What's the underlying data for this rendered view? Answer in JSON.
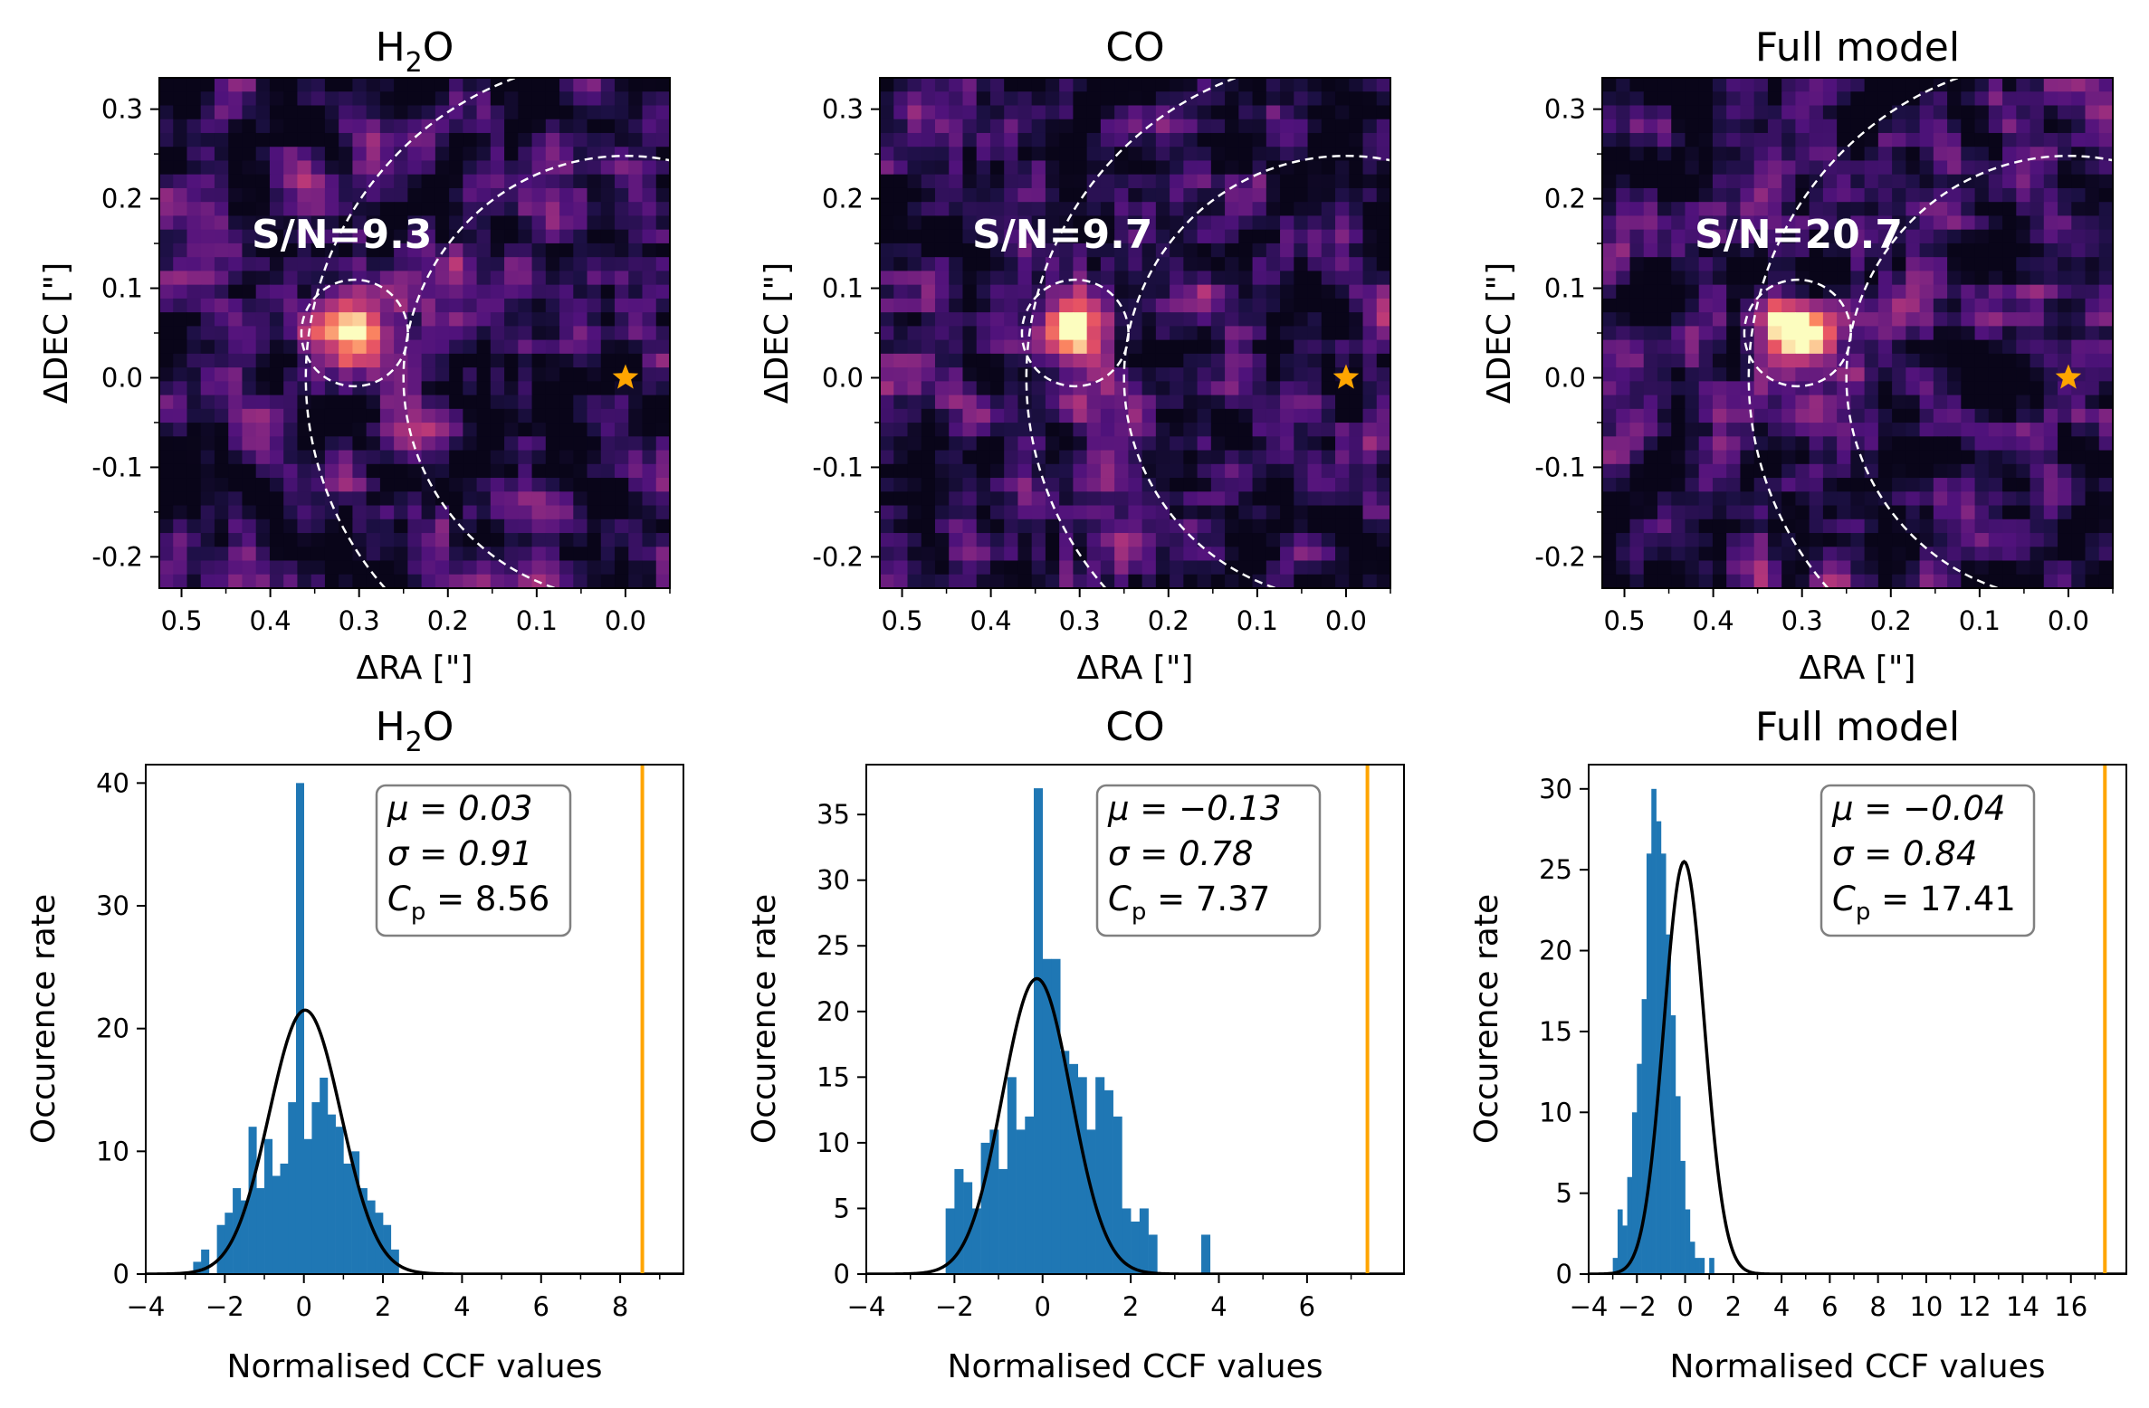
{
  "figure": {
    "maps": [
      {
        "title_main": "H",
        "title_sub": "2",
        "title_end": "O",
        "snr_label": "S/N=9.3",
        "xlabel": "ΔRA [\"]",
        "ylabel": "ΔDEC [\"]",
        "xticks": [
          "0.5",
          "0.4",
          "0.3",
          "0.2",
          "0.1",
          "0.0"
        ],
        "yticks": [
          "0.3",
          "0.2",
          "0.1",
          "0.0",
          "-0.1",
          "-0.2"
        ],
        "seed": 11
      },
      {
        "title_main": "CO",
        "title_sub": "",
        "title_end": "",
        "snr_label": "S/N=9.7",
        "xlabel": "ΔRA [\"]",
        "ylabel": "ΔDEC [\"]",
        "xticks": [
          "0.5",
          "0.4",
          "0.3",
          "0.2",
          "0.1",
          "0.0"
        ],
        "yticks": [
          "0.3",
          "0.2",
          "0.1",
          "0.0",
          "-0.1",
          "-0.2"
        ],
        "seed": 23
      },
      {
        "title_main": "Full model",
        "title_sub": "",
        "title_end": "",
        "snr_label": "S/N=20.7",
        "xlabel": "ΔRA [\"]",
        "ylabel": "ΔDEC [\"]",
        "xticks": [
          "0.5",
          "0.4",
          "0.3",
          "0.2",
          "0.1",
          "0.0"
        ],
        "yticks": [
          "0.3",
          "0.2",
          "0.1",
          "0.0",
          "-0.1",
          "-0.2"
        ],
        "seed": 37
      }
    ],
    "hists": [
      {
        "title_main": "H",
        "title_sub": "2",
        "title_end": "O",
        "xlabel": "Normalised CCF values",
        "ylabel": "Occurence rate",
        "stat_mu": "μ = 0.03",
        "stat_sigma": "σ = 0.91",
        "stat_cp": "C",
        "stat_cp_sub": "p",
        "stat_cp_val": " = 8.56",
        "xticks": [
          "−4",
          "−2",
          "0",
          "2",
          "4",
          "6",
          "8"
        ],
        "yticks": [
          "0",
          "10",
          "20",
          "30",
          "40"
        ]
      },
      {
        "title_main": "CO",
        "title_sub": "",
        "title_end": "",
        "xlabel": "Normalised CCF values",
        "ylabel": "Occurence rate",
        "stat_mu": "μ = −0.13",
        "stat_sigma": "σ = 0.78",
        "stat_cp": "C",
        "stat_cp_sub": "p",
        "stat_cp_val": " = 7.37",
        "xticks": [
          "−4",
          "−2",
          "0",
          "2",
          "4",
          "6"
        ],
        "yticks": [
          "0",
          "5",
          "10",
          "15",
          "20",
          "25",
          "30",
          "35"
        ]
      },
      {
        "title_main": "Full model",
        "title_sub": "",
        "title_end": "",
        "xlabel": "Normalised CCF values",
        "ylabel": "Occurence rate",
        "stat_mu": "μ = −0.04",
        "stat_sigma": "σ = 0.84",
        "stat_cp": "C",
        "stat_cp_sub": "p",
        "stat_cp_val": " = 17.41",
        "xticks": [
          "−4",
          "−2",
          "0",
          "2",
          "4",
          "6",
          "8",
          "10",
          "12",
          "14",
          "16"
        ],
        "yticks": [
          "0",
          "5",
          "10",
          "15",
          "20",
          "25",
          "30"
        ]
      }
    ]
  },
  "chart_data": [
    {
      "type": "heatmap",
      "title": "H2O",
      "annotation": "S/N=9.3",
      "xlabel": "ΔRA [\"]",
      "ylabel": "ΔDEC [\"]",
      "xlim": [
        0.525,
        -0.05
      ],
      "ylim": [
        -0.235,
        0.335
      ],
      "peak": {
        "x": 0.305,
        "y": 0.05,
        "strength": 0.9
      },
      "star": {
        "x": 0.0,
        "y": 0.0,
        "color": "#ffa500"
      },
      "circles": [
        {
          "cx": 0.305,
          "cy": 0.05,
          "r": 0.06
        },
        {
          "cx": 0.0,
          "cy": 0.0,
          "r": 0.36
        },
        {
          "cx": 0.0,
          "cy": 0.0,
          "r": 0.25
        }
      ]
    },
    {
      "type": "heatmap",
      "title": "CO",
      "annotation": "S/N=9.7",
      "xlabel": "ΔRA [\"]",
      "ylabel": "ΔDEC [\"]",
      "xlim": [
        0.525,
        -0.05
      ],
      "ylim": [
        -0.235,
        0.335
      ],
      "peak": {
        "x": 0.31,
        "y": 0.05,
        "strength": 1.0
      },
      "star": {
        "x": 0.0,
        "y": 0.0,
        "color": "#ffa500"
      },
      "circles": [
        {
          "cx": 0.305,
          "cy": 0.05,
          "r": 0.06
        },
        {
          "cx": 0.0,
          "cy": 0.0,
          "r": 0.36
        },
        {
          "cx": 0.0,
          "cy": 0.0,
          "r": 0.25
        }
      ]
    },
    {
      "type": "heatmap",
      "title": "Full model",
      "annotation": "S/N=20.7",
      "xlabel": "ΔRA [\"]",
      "ylabel": "ΔDEC [\"]",
      "xlim": [
        0.525,
        -0.05
      ],
      "ylim": [
        -0.235,
        0.335
      ],
      "peak": {
        "x": 0.305,
        "y": 0.05,
        "strength": 1.2
      },
      "star": {
        "x": 0.0,
        "y": 0.0,
        "color": "#ffa500"
      },
      "circles": [
        {
          "cx": 0.305,
          "cy": 0.05,
          "r": 0.06
        },
        {
          "cx": 0.0,
          "cy": 0.0,
          "r": 0.36
        },
        {
          "cx": 0.0,
          "cy": 0.0,
          "r": 0.25
        }
      ]
    },
    {
      "type": "bar",
      "title": "H2O",
      "xlabel": "Normalised CCF values",
      "ylabel": "Occurence rate",
      "xlim": [
        -4,
        9.6
      ],
      "ylim": [
        0,
        41.5
      ],
      "bins_start": -2.8,
      "bin_width": 0.2,
      "counts": [
        1,
        2,
        0,
        4,
        5,
        7,
        6,
        12,
        7,
        11,
        8,
        9,
        14,
        40,
        11,
        14,
        16,
        13,
        12,
        9,
        10,
        7,
        6,
        5,
        4,
        2
      ],
      "fit": {
        "mu": 0.03,
        "sigma": 0.91,
        "amp": 21.5
      },
      "vline": 8.56,
      "mu": 0.03,
      "sigma": 0.91,
      "Cp": 8.56,
      "bar_color": "#1f77b4",
      "fit_color": "#000000",
      "vline_color": "#ffa500"
    },
    {
      "type": "bar",
      "title": "CO",
      "xlabel": "Normalised CCF values",
      "ylabel": "Occurence rate",
      "xlim": [
        -4,
        8.2
      ],
      "ylim": [
        0,
        38.8
      ],
      "bins_start": -2.2,
      "bin_width": 0.2,
      "counts": [
        5,
        8,
        7,
        5,
        10,
        11,
        8,
        15,
        11,
        12,
        37,
        24,
        24,
        17,
        16,
        15,
        11,
        15,
        14,
        12,
        5,
        4,
        5,
        3,
        0,
        0,
        0,
        0,
        0,
        3
      ],
      "fit": {
        "mu": -0.13,
        "sigma": 0.78,
        "amp": 22.5
      },
      "vline": 7.37,
      "mu": -0.13,
      "sigma": 0.78,
      "Cp": 7.37,
      "bar_color": "#1f77b4",
      "fit_color": "#000000",
      "vline_color": "#ffa500"
    },
    {
      "type": "bar",
      "title": "Full model",
      "xlabel": "Normalised CCF values",
      "ylabel": "Occurence rate",
      "xlim": [
        -4,
        18.3
      ],
      "ylim": [
        0,
        31.5
      ],
      "bins_start": -3.0,
      "bin_width": 0.2,
      "counts": [
        1,
        4,
        3,
        6,
        10,
        13,
        17,
        26,
        30,
        28,
        26,
        21,
        16,
        11,
        7,
        4,
        2,
        1,
        1,
        0,
        1
      ],
      "fit": {
        "mu": -0.04,
        "sigma": 0.84,
        "amp": 25.5
      },
      "vline": 17.41,
      "mu": -0.04,
      "sigma": 0.84,
      "Cp": 17.41,
      "bar_color": "#1f77b4",
      "fit_color": "#000000",
      "vline_color": "#ffa500"
    }
  ]
}
